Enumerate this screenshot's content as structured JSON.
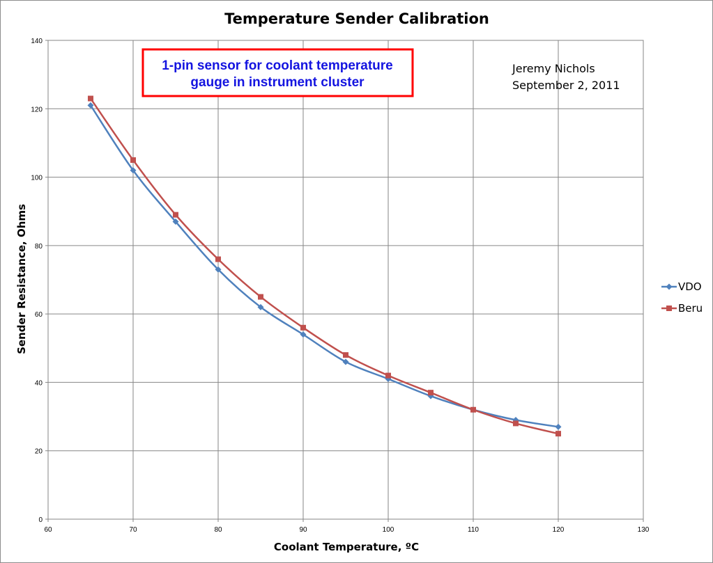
{
  "chart_data": {
    "type": "line",
    "title": "Temperature Sender Calibration",
    "xlabel": "Coolant Temperature, ºC",
    "ylabel": "Sender Resistance, Ohms",
    "xlim": [
      60,
      130
    ],
    "ylim": [
      0,
      140
    ],
    "xticks": [
      60,
      70,
      80,
      90,
      100,
      110,
      120,
      130
    ],
    "yticks": [
      0,
      20,
      40,
      60,
      80,
      100,
      120,
      140
    ],
    "grid": true,
    "legend_position": "right",
    "x": [
      65,
      70,
      75,
      80,
      85,
      90,
      95,
      100,
      105,
      110,
      115,
      120
    ],
    "series": [
      {
        "name": "VDO",
        "color": "#4f81bd",
        "marker": "diamond",
        "values": [
          121,
          102,
          87,
          73,
          62,
          54,
          46,
          41,
          36,
          32,
          29,
          27
        ]
      },
      {
        "name": "Beru",
        "color": "#c0504d",
        "marker": "square",
        "values": [
          123,
          105,
          89,
          76,
          65,
          56,
          48,
          42,
          37,
          32,
          28,
          25
        ]
      }
    ],
    "annotations": {
      "note_lines": [
        "1-pin sensor for coolant temperature",
        "gauge in instrument cluster"
      ],
      "note_border_color": "#ff0000",
      "note_text_color": "#1414e0",
      "author": "Jeremy Nichols",
      "date": "September 2, 2011"
    }
  }
}
